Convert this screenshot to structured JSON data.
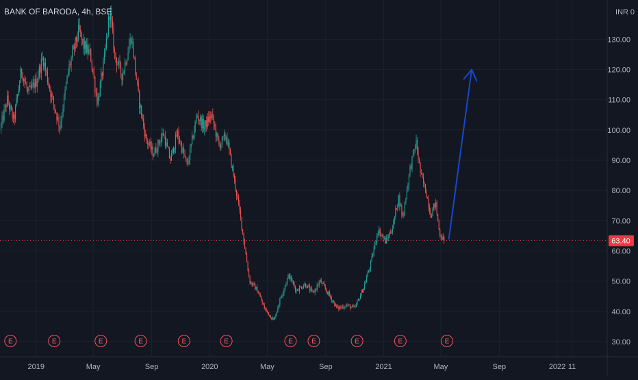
{
  "symbol": {
    "title": "BANK OF BARODA, 4h, BSE"
  },
  "axis": {
    "currency": "INR",
    "scale_mode_button": "0"
  },
  "last_price": {
    "label": "63.40",
    "value": 63.4,
    "color": "#f23645"
  },
  "colors": {
    "background": "#131722",
    "grid": "#1e222d",
    "up": "#26a69a",
    "down": "#ef5350",
    "arrow": "#1848cc",
    "earnings": "#f7525f"
  },
  "chart_data": {
    "type": "candlestick",
    "title": "BANK OF BARODA, 4h, BSE",
    "y_axis": {
      "side": "right",
      "ticks": [
        "130.00",
        "120.00",
        "110.00",
        "100.00",
        "90.00",
        "80.00",
        "70.00",
        "60.00",
        "50.00",
        "40.00",
        "30.00"
      ],
      "tick_values": [
        130,
        120,
        110,
        100,
        90,
        80,
        70,
        60,
        50,
        40,
        30
      ],
      "range": [
        25,
        143
      ]
    },
    "x_axis": {
      "ticks": [
        "2019",
        "May",
        "Sep",
        "2020",
        "May",
        "Sep",
        "2021",
        "May",
        "Sep",
        "2022",
        "11"
      ],
      "tick_dates": [
        "2019-01",
        "2019-05",
        "2019-09",
        "2020-01",
        "2020-05",
        "2020-09",
        "2021-01",
        "2021-05",
        "2021-09",
        "2022-01",
        "2022-02"
      ],
      "range": [
        "2018-10-17",
        "2022-04-16"
      ]
    },
    "price_path": [
      [
        "2018-10-17",
        100
      ],
      [
        "2018-11-01",
        110
      ],
      [
        "2018-11-15",
        103
      ],
      [
        "2018-12-01",
        120
      ],
      [
        "2018-12-15",
        112
      ],
      [
        "2019-01-01",
        116
      ],
      [
        "2019-01-15",
        124
      ],
      [
        "2019-02-01",
        112
      ],
      [
        "2019-02-20",
        101
      ],
      [
        "2019-03-10",
        120
      ],
      [
        "2019-04-01",
        133
      ],
      [
        "2019-04-10",
        128
      ],
      [
        "2019-04-25",
        125
      ],
      [
        "2019-05-10",
        109
      ],
      [
        "2019-05-25",
        124
      ],
      [
        "2019-06-05",
        140
      ],
      [
        "2019-06-15",
        125
      ],
      [
        "2019-07-01",
        118
      ],
      [
        "2019-07-20",
        131
      ],
      [
        "2019-08-05",
        110
      ],
      [
        "2019-08-20",
        97
      ],
      [
        "2019-09-05",
        92
      ],
      [
        "2019-09-25",
        99
      ],
      [
        "2019-10-10",
        90
      ],
      [
        "2019-10-25",
        99
      ],
      [
        "2019-11-15",
        88
      ],
      [
        "2019-12-05",
        105
      ],
      [
        "2019-12-20",
        101
      ],
      [
        "2020-01-05",
        105
      ],
      [
        "2020-01-20",
        95
      ],
      [
        "2020-02-05",
        98
      ],
      [
        "2020-02-20",
        85
      ],
      [
        "2020-03-05",
        72
      ],
      [
        "2020-03-25",
        50
      ],
      [
        "2020-04-10",
        47
      ],
      [
        "2020-04-25",
        41
      ],
      [
        "2020-05-15",
        37
      ],
      [
        "2020-05-30",
        45
      ],
      [
        "2020-06-15",
        52
      ],
      [
        "2020-07-01",
        47
      ],
      [
        "2020-07-20",
        49
      ],
      [
        "2020-08-05",
        46
      ],
      [
        "2020-08-20",
        50
      ],
      [
        "2020-09-10",
        45
      ],
      [
        "2020-09-25",
        41
      ],
      [
        "2020-10-15",
        42
      ],
      [
        "2020-11-01",
        41
      ],
      [
        "2020-11-20",
        48
      ],
      [
        "2020-12-05",
        56
      ],
      [
        "2020-12-20",
        67
      ],
      [
        "2021-01-05",
        63
      ],
      [
        "2021-01-20",
        68
      ],
      [
        "2021-02-01",
        78
      ],
      [
        "2021-02-10",
        71
      ],
      [
        "2021-02-25",
        87
      ],
      [
        "2021-03-10",
        96
      ],
      [
        "2021-03-20",
        85
      ],
      [
        "2021-04-01",
        79
      ],
      [
        "2021-04-10",
        72
      ],
      [
        "2021-04-20",
        76
      ],
      [
        "2021-04-28",
        66
      ],
      [
        "2021-05-08",
        63.4
      ]
    ],
    "earnings_events": {
      "label": "E",
      "dates": [
        "2018-11-08",
        "2019-02-08",
        "2019-05-17",
        "2019-08-09",
        "2019-11-08",
        "2020-02-05",
        "2020-06-19",
        "2020-08-07",
        "2020-11-06",
        "2021-02-05",
        "2021-05-14"
      ]
    },
    "annotations": [
      {
        "type": "arrow",
        "from": {
          "date": "2021-05-18",
          "price": 64
        },
        "to": {
          "date": "2021-07-05",
          "price": 120
        },
        "color": "#1848cc"
      }
    ],
    "grid": true,
    "last_price_line": {
      "value": 63.4,
      "style": "dotted"
    }
  }
}
